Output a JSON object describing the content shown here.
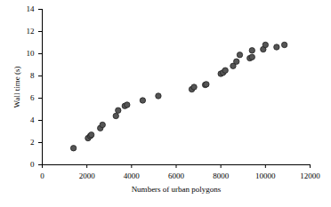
{
  "chart_data": {
    "type": "scatter",
    "x_label": "Numbers of urban polygons",
    "y_label": "Wall time (s)",
    "x": [
      1400,
      2050,
      2150,
      2200,
      2600,
      2700,
      3300,
      3400,
      3700,
      3800,
      4500,
      5200,
      6700,
      6800,
      7300,
      7350,
      8000,
      8100,
      8200,
      8550,
      8700,
      8850,
      9300,
      9400,
      9400,
      9900,
      10000,
      10500,
      10850
    ],
    "values": [
      1.5,
      2.4,
      2.6,
      2.7,
      3.3,
      3.6,
      4.4,
      4.9,
      5.3,
      5.4,
      5.8,
      6.2,
      6.8,
      7.0,
      7.2,
      7.25,
      8.2,
      8.3,
      8.5,
      8.9,
      9.3,
      9.9,
      9.6,
      9.7,
      10.3,
      10.4,
      10.8,
      10.6,
      10.8
    ],
    "color": "#555555",
    "marker": "circle",
    "grid": false,
    "xlim": [
      0,
      12000
    ],
    "xticks": [
      0,
      2000,
      4000,
      6000,
      8000,
      10000,
      12000
    ],
    "ylim": [
      0,
      14
    ],
    "yticks": [
      0,
      2,
      4,
      6,
      8,
      10,
      12,
      14
    ]
  }
}
